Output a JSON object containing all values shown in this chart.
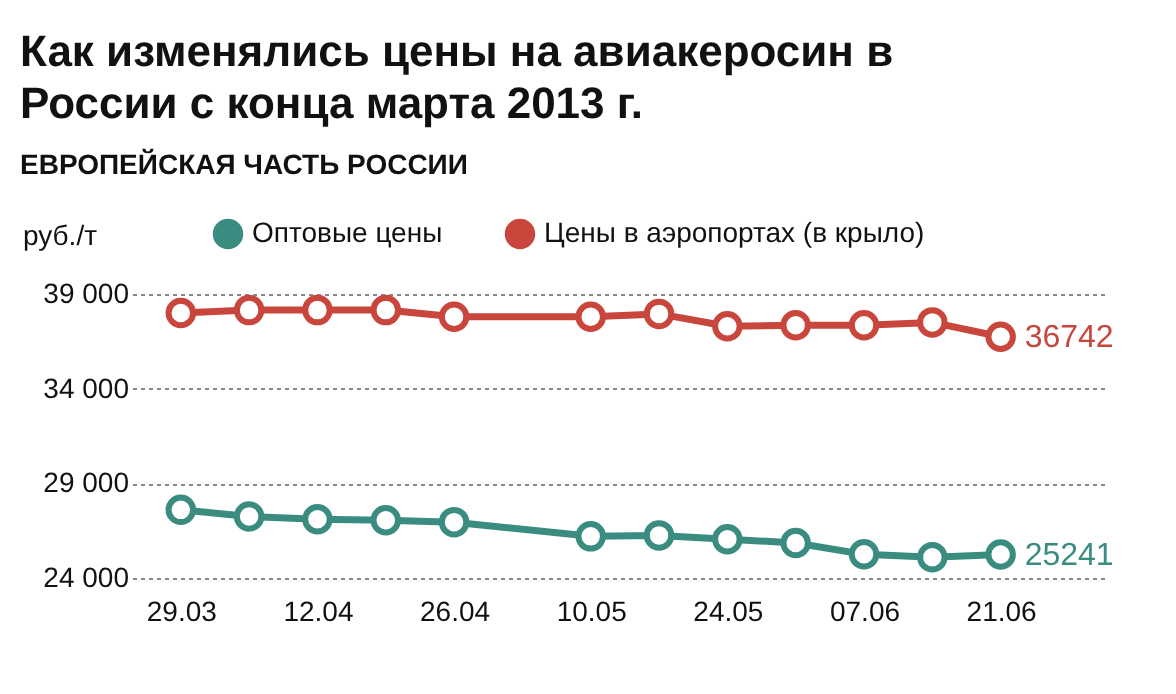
{
  "chart_data": {
    "type": "line",
    "title": "Как изменялись цены на авиакеросин в России с конца марта 2013 г.",
    "subtitle": "ЕВРОПЕЙСКАЯ ЧАСТЬ РОССИИ",
    "ylabel": "руб./т",
    "x": [
      "--03-29",
      "--04-05",
      "--04-12",
      "--04-19",
      "--04-26",
      "--05-10",
      "--05-17",
      "--05-24",
      "--05-31",
      "--06-07",
      "--06-14",
      "--06-21"
    ],
    "series": [
      {
        "name": "Оптовые цены",
        "color": "#3a8c80",
        "values": [
          27600,
          27250,
          27100,
          27050,
          26950,
          26200,
          26250,
          26050,
          25850,
          25250,
          25100,
          25241
        ],
        "value_labels": [
          null,
          null,
          null,
          null,
          null,
          null,
          null,
          null,
          null,
          null,
          null,
          "25241"
        ]
      },
      {
        "name": "Цены в аэропортах (в крыло)",
        "color": "#c9463d",
        "values": [
          38000,
          38150,
          38150,
          38150,
          37800,
          37800,
          37950,
          37300,
          37350,
          37350,
          37500,
          36742
        ],
        "value_labels": [
          null,
          null,
          null,
          null,
          null,
          null,
          null,
          null,
          null,
          null,
          null,
          "36742"
        ]
      }
    ],
    "xlim": [
      "--03-24",
      "--07-02"
    ],
    "xticks": [
      {
        "value": "--03-29",
        "label": "29.03"
      },
      {
        "value": "--04-12",
        "label": "12.04"
      },
      {
        "value": "--04-26",
        "label": "26.04"
      },
      {
        "value": "--05-10",
        "label": "10.05"
      },
      {
        "value": "--05-24",
        "label": "24.05"
      },
      {
        "value": "--06-07",
        "label": "07.06"
      },
      {
        "value": "--06-21",
        "label": "21.06"
      }
    ],
    "ylim": [
      24000,
      39000
    ],
    "yticks": [
      {
        "value": 24000,
        "label": "24 000"
      },
      {
        "value": 29000,
        "label": "29 000"
      },
      {
        "value": 34000,
        "label": "34 000"
      },
      {
        "value": 39000,
        "label": "39 000"
      }
    ],
    "grid": "y",
    "legend": "top",
    "marker": "circle",
    "line_style": "solid"
  }
}
